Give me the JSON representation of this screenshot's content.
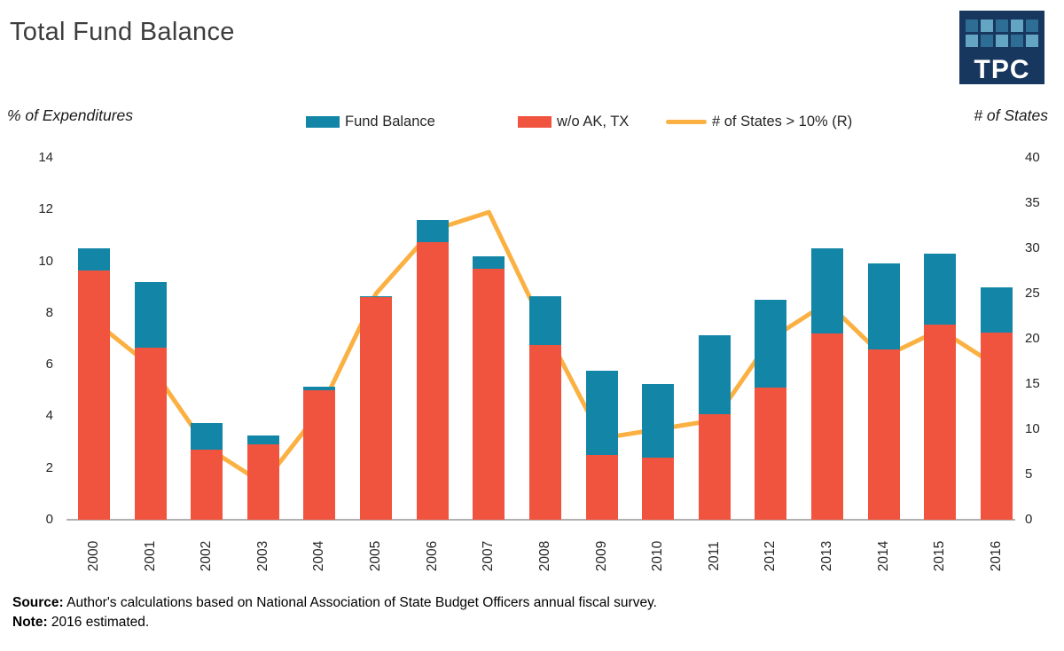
{
  "header": {
    "title": "Total Fund Balance",
    "logo_text": "TPC",
    "logo_bg_color": "#17375e",
    "logo_square_colors": [
      "#2e6e94",
      "#64a5c4"
    ]
  },
  "legend": [
    {
      "label": "Fund Balance",
      "color": "#1386a8",
      "kind": "box"
    },
    {
      "label": "w/o AK, TX",
      "color": "#f0543f",
      "kind": "box"
    },
    {
      "label": "# of States > 10% (R)",
      "color": "#fbb042",
      "kind": "line"
    }
  ],
  "axes": {
    "left_title": "% of Expenditures",
    "right_title": "# of States",
    "left_ticks": [
      0,
      2,
      4,
      6,
      8,
      10,
      12,
      14
    ],
    "right_ticks": [
      0,
      5,
      10,
      15,
      20,
      25,
      30,
      35,
      40
    ],
    "left_max": 14,
    "right_max": 40
  },
  "chart_data": {
    "type": "bar",
    "subtype": "stacked-bars-with-line",
    "title": "Total Fund Balance",
    "xlabel": "",
    "ylabel_left": "% of Expenditures",
    "ylabel_right": "# of States",
    "ylim_left": [
      0,
      14
    ],
    "ylim_right": [
      0,
      40
    ],
    "grid": false,
    "legend_position": "top-center",
    "categories": [
      "2000",
      "2001",
      "2002",
      "2003",
      "2004",
      "2005",
      "2006",
      "2007",
      "2008",
      "2009",
      "2010",
      "2011",
      "2012",
      "2013",
      "2014",
      "2015",
      "2016"
    ],
    "series": [
      {
        "name": "Fund Balance",
        "type": "bar-total",
        "axis": "left",
        "color": "#1386a8",
        "values": [
          10.5,
          9.2,
          3.75,
          3.25,
          5.15,
          8.65,
          11.6,
          10.2,
          8.65,
          5.75,
          5.25,
          7.15,
          8.5,
          10.5,
          9.9,
          10.3,
          9.0
        ]
      },
      {
        "name": "w/o AK, TX",
        "type": "bar",
        "axis": "left",
        "color": "#f0543f",
        "values": [
          9.65,
          6.65,
          2.7,
          2.9,
          5.0,
          8.6,
          10.75,
          9.7,
          6.75,
          2.5,
          2.4,
          4.1,
          5.1,
          7.2,
          6.6,
          7.55,
          7.25
        ]
      },
      {
        "name": "# of States > 10% (R)",
        "type": "line",
        "axis": "right",
        "color": "#fbb042",
        "values": [
          22,
          17,
          8,
          4,
          12,
          25,
          32,
          34,
          21,
          9,
          10,
          11,
          20,
          24,
          18,
          21,
          17
        ]
      }
    ]
  },
  "footer": {
    "source_label": "Source:",
    "source_text": "Author's calculations based on National Association of State Budget Officers annual fiscal survey.",
    "note_label": "Note:",
    "note_text": "2016 estimated."
  }
}
